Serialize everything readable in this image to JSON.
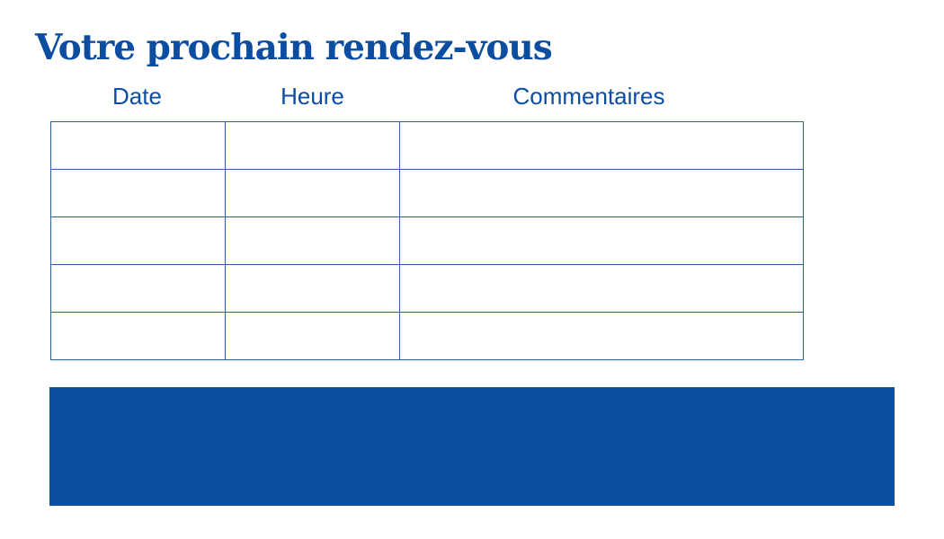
{
  "title": "Votre prochain rendez-vous",
  "table": {
    "headers": [
      "Date",
      "Heure",
      "Commentaires"
    ],
    "rows": [
      [
        "",
        "",
        ""
      ],
      [
        "",
        "",
        ""
      ],
      [
        "",
        "",
        ""
      ],
      [
        "",
        "",
        ""
      ],
      [
        "",
        "",
        ""
      ]
    ]
  },
  "colors": {
    "brand": "#0a4da1"
  }
}
